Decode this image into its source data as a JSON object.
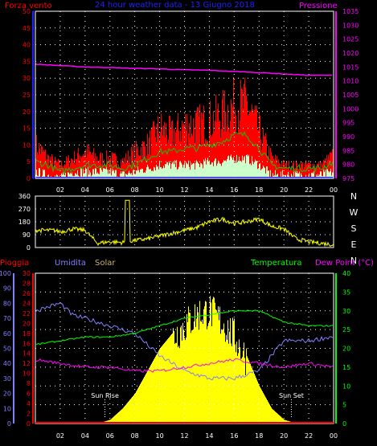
{
  "colors": {
    "bg": "#000000",
    "frame": "#ffffff",
    "grid": "#ffffff",
    "red": "#ff0000",
    "magenta": "#ff00ff",
    "green": "#00cc00",
    "lightgreen": "#ccffcc",
    "blue": "#2020ff",
    "yellow": "#ffff00",
    "umidita": "#8080ff",
    "temp": "#00ff00",
    "solar": "#c8b464"
  },
  "x_ticks": [
    "02",
    "04",
    "06",
    "08",
    "10",
    "12",
    "14",
    "16",
    "18",
    "20",
    "22",
    "00"
  ],
  "chart_data": [
    {
      "type": "line",
      "panel": "wind-pressure",
      "title": "24 hour weather data - 13 Giugno 2018",
      "left_label": "Forza vento",
      "right_label": "Pressione",
      "y_left_ticks": [
        "0",
        "5",
        "10",
        "15",
        "20",
        "25",
        "30",
        "35",
        "40",
        "45",
        "50"
      ],
      "y_right_ticks": [
        "975",
        "980",
        "985",
        "990",
        "995",
        "1000",
        "1005",
        "1010",
        "1015",
        "1020",
        "1025",
        "1030",
        "1035"
      ],
      "ylim_left": [
        0,
        50
      ],
      "ylim_right": [
        975,
        1035
      ],
      "series": [
        {
          "name": "Pressione",
          "axis": "right",
          "x": [
            0,
            2,
            4,
            6,
            8,
            10,
            12,
            14,
            16,
            18,
            20,
            22,
            24
          ],
          "values": [
            1016,
            1015.5,
            1015,
            1014.8,
            1014.5,
            1014.3,
            1014,
            1013.8,
            1013.4,
            1013,
            1012.5,
            1012,
            1012
          ]
        },
        {
          "name": "wind-gust",
          "axis": "left",
          "x": [
            0,
            1,
            2,
            3,
            4,
            5,
            6,
            7,
            8,
            9,
            10,
            11,
            12,
            13,
            14,
            15,
            16,
            17,
            18,
            19,
            20,
            21,
            22,
            23,
            24
          ],
          "values": [
            10,
            6,
            4,
            6,
            8,
            6,
            6,
            5,
            8,
            10,
            15,
            13,
            16,
            16,
            17,
            19,
            22,
            22,
            14,
            6,
            4,
            4,
            4,
            4,
            7
          ]
        },
        {
          "name": "wind-speed",
          "axis": "left",
          "x": [
            0,
            1,
            2,
            3,
            4,
            5,
            6,
            7,
            8,
            9,
            10,
            11,
            12,
            13,
            14,
            15,
            16,
            17,
            18,
            19,
            20,
            21,
            22,
            23,
            24
          ],
          "values": [
            5,
            4,
            2,
            3,
            4,
            4,
            4,
            3,
            4,
            6,
            8,
            8,
            9,
            9,
            10,
            11,
            13,
            13,
            9,
            4,
            3,
            3,
            3,
            3,
            5
          ]
        },
        {
          "name": "wind-min",
          "axis": "left",
          "x": [
            0,
            1,
            2,
            3,
            4,
            5,
            6,
            7,
            8,
            9,
            10,
            11,
            12,
            13,
            14,
            15,
            16,
            17,
            18,
            19,
            20,
            21,
            22,
            23,
            24
          ],
          "values": [
            2,
            1,
            0,
            2,
            2,
            2,
            2,
            1,
            2,
            3,
            4,
            4,
            4,
            4,
            5,
            5,
            6,
            6,
            4,
            1,
            1,
            1,
            1,
            1,
            2
          ]
        }
      ],
      "xlim": [
        0,
        24
      ]
    },
    {
      "type": "line",
      "panel": "wind-direction",
      "y_ticks": [
        "0",
        "90",
        "180",
        "270",
        "360"
      ],
      "right_labels": [
        "N",
        "W",
        "S",
        "E",
        "N"
      ],
      "ylim": [
        0,
        360
      ],
      "series": [
        {
          "name": "direction",
          "x": [
            0,
            1.5,
            2,
            3,
            4,
            5,
            6,
            7,
            8,
            9,
            10,
            11,
            12,
            13,
            14,
            15,
            16,
            17,
            18,
            19,
            20,
            21,
            22,
            23,
            24
          ],
          "values": [
            120,
            120,
            110,
            130,
            120,
            30,
            40,
            35,
            50,
            60,
            80,
            100,
            120,
            140,
            180,
            200,
            170,
            180,
            200,
            150,
            130,
            60,
            40,
            30,
            20
          ]
        }
      ],
      "xlim": [
        0,
        24
      ]
    },
    {
      "type": "area",
      "panel": "rain-humidity-solar-temp",
      "labels": {
        "pioggia": "Pioggia",
        "umidita": "Umidita",
        "solar": "Solar",
        "temperatura": "Temperatura",
        "dewpoint": "Dew Point (°C)"
      },
      "y_left1_ticks": [
        "0",
        "10",
        "20",
        "30",
        "40",
        "50",
        "60",
        "70",
        "80",
        "90",
        "100"
      ],
      "y_left2_ticks": [
        "0",
        "2",
        "4",
        "6",
        "8",
        "10",
        "12",
        "14",
        "16",
        "18",
        "20",
        "22",
        "24",
        "26",
        "28",
        "30"
      ],
      "y_right_ticks": [
        "0",
        "5",
        "10",
        "15",
        "20",
        "25",
        "30",
        "35",
        "40"
      ],
      "annotations": {
        "sunrise": "Sun Rise",
        "sunset": "Sun Set"
      },
      "sunrise_x": 5.6,
      "sunset_x": 20.6,
      "series": [
        {
          "name": "Umidita",
          "axis": "left1",
          "x": [
            0,
            2,
            3,
            4,
            6,
            8,
            10,
            12,
            14,
            16,
            18,
            20,
            22,
            24
          ],
          "values": [
            75,
            80,
            72,
            70,
            65,
            60,
            45,
            35,
            30,
            30,
            35,
            55,
            55,
            58
          ]
        },
        {
          "name": "Temperatura",
          "axis": "right",
          "x": [
            0,
            2,
            4,
            6,
            8,
            10,
            12,
            14,
            16,
            18,
            20,
            22,
            24
          ],
          "values": [
            21,
            22,
            23,
            23,
            24,
            26,
            28,
            29,
            30,
            30,
            27,
            26,
            26
          ]
        },
        {
          "name": "Dew Point",
          "axis": "right",
          "x": [
            0,
            2,
            4,
            6,
            8,
            10,
            12,
            14,
            16,
            18,
            20,
            22,
            24
          ],
          "values": [
            17,
            16,
            15,
            15,
            14,
            14,
            15,
            16,
            17,
            16,
            15,
            16,
            15
          ]
        },
        {
          "name": "Solar",
          "axis": "right",
          "x": [
            5,
            6,
            7,
            8,
            9,
            10,
            11,
            12,
            13,
            14,
            15,
            16,
            17,
            18,
            19,
            20,
            21
          ],
          "values": [
            0,
            1,
            4,
            8,
            14,
            20,
            24,
            27,
            30,
            31,
            28,
            24,
            18,
            10,
            4,
            1,
            0
          ]
        }
      ],
      "xlim": [
        0,
        24
      ]
    }
  ]
}
